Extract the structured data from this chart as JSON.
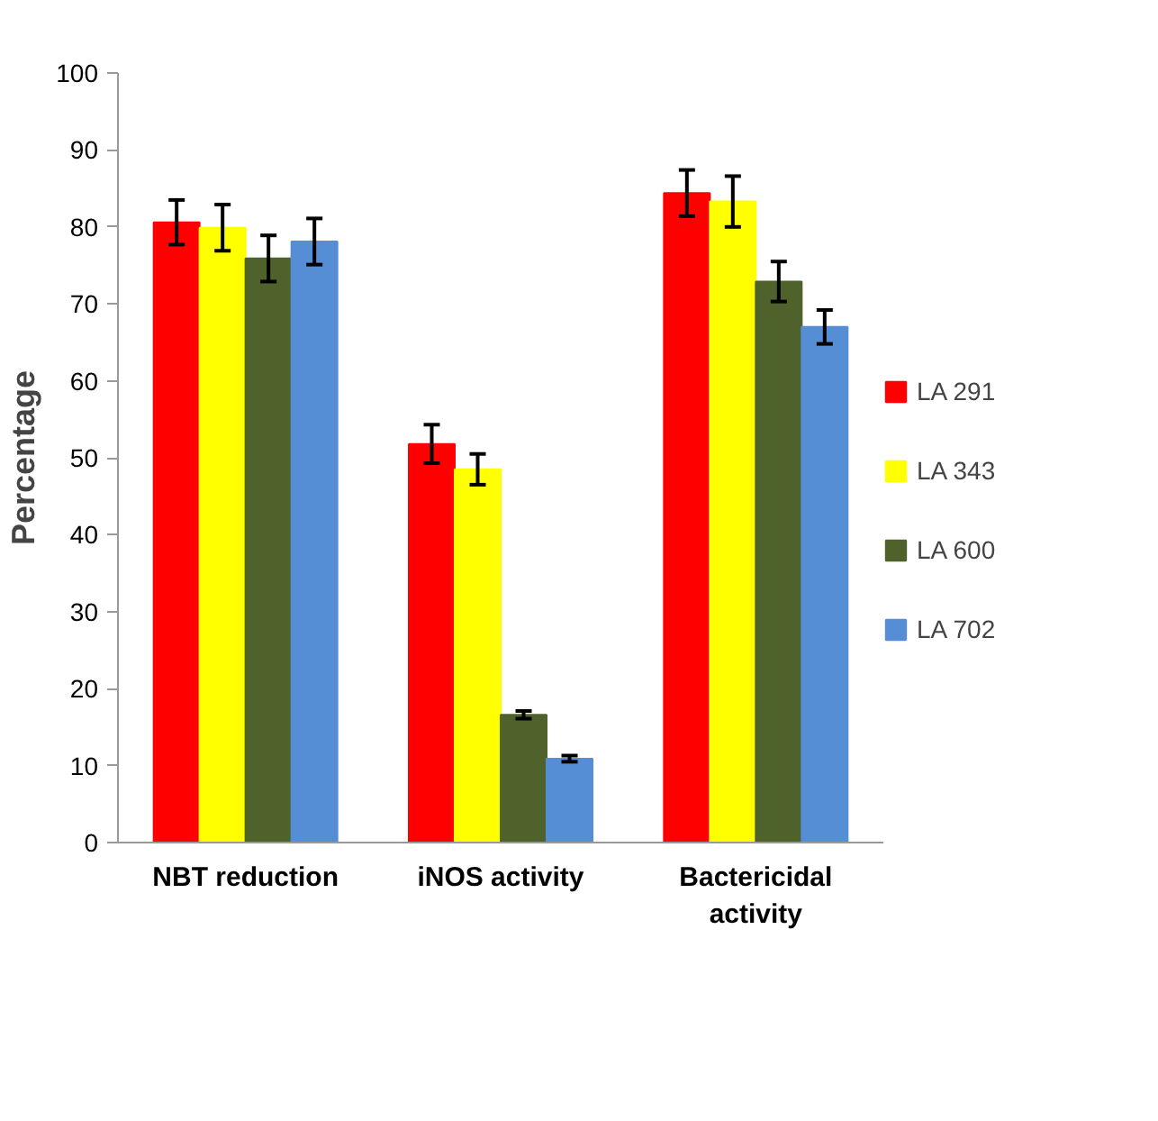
{
  "chart_data": {
    "type": "bar",
    "ylabel": "Percentage",
    "categories": [
      "NBT reduction",
      "iNOS activity",
      "Bactericidal activity"
    ],
    "series": [
      {
        "name": "LA 291",
        "color": "#ff0000",
        "values": [
          80.6,
          51.8,
          84.4
        ],
        "errors": [
          2.9,
          2.5,
          3.0
        ]
      },
      {
        "name": "LA 343",
        "color": "#ffff00",
        "values": [
          79.9,
          48.5,
          83.3
        ],
        "errors": [
          3.0,
          2.0,
          3.3
        ]
      },
      {
        "name": "LA 600",
        "color": "#4f622b",
        "values": [
          75.9,
          16.6,
          72.9
        ],
        "errors": [
          3.0,
          0.5,
          2.6
        ]
      },
      {
        "name": "LA 702",
        "color": "#558ed5",
        "values": [
          78.1,
          10.9,
          67.0
        ],
        "errors": [
          3.0,
          0.4,
          2.2
        ]
      }
    ],
    "ylim": [
      0,
      100
    ],
    "yticks": [
      0,
      10,
      20,
      30,
      40,
      50,
      60,
      70,
      80,
      90,
      100
    ],
    "grid": false,
    "legend": "right"
  }
}
